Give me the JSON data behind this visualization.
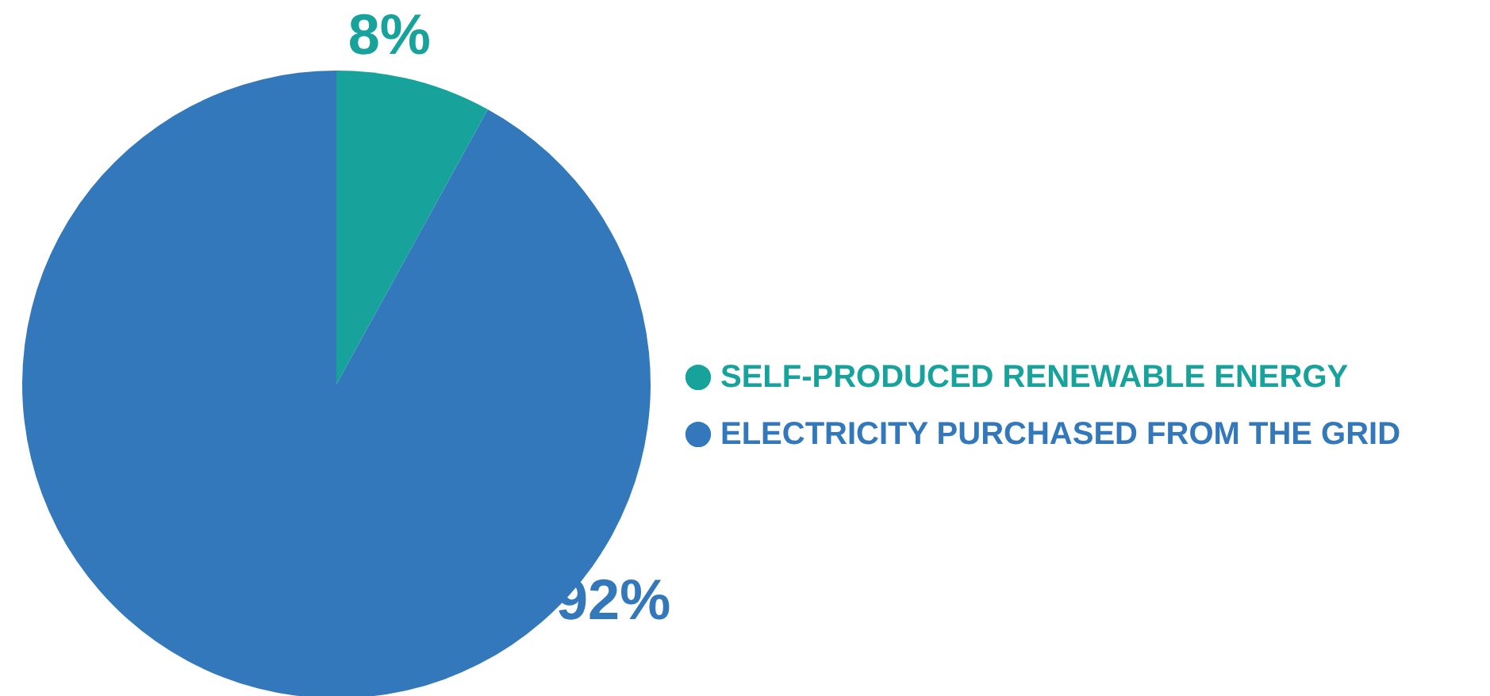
{
  "chart_data": {
    "type": "pie",
    "categories": [
      "SELF-PRODUCED RENEWABLE ENERGY",
      "ELECTRICITY PURCHASED FROM THE GRID"
    ],
    "values": [
      8,
      92
    ],
    "colors": [
      "#17a39b",
      "#3278ba"
    ],
    "value_labels": [
      "8%",
      "92%"
    ],
    "legend": "right"
  }
}
